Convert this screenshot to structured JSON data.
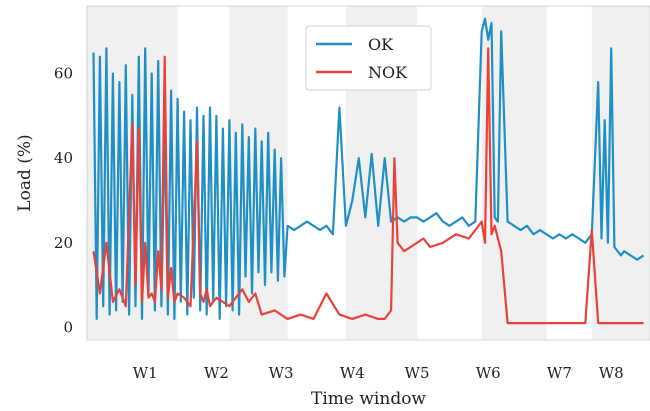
{
  "chart_data": {
    "type": "line",
    "title": "",
    "xlabel": "Time window",
    "ylabel": "Load (%)",
    "ylim": [
      -3,
      76
    ],
    "yticks": [
      0,
      20,
      40,
      60
    ],
    "xtick_labels": [
      "W1",
      "W2",
      "W3",
      "W4",
      "W5",
      "W6",
      "W7",
      "W8"
    ],
    "xtick_positions": [
      1.2,
      2.3,
      3.3,
      4.4,
      5.4,
      6.5,
      7.6,
      8.4
    ],
    "xlim": [
      0.3,
      9.0
    ],
    "shaded_bands": [
      [
        0.3,
        1.7
      ],
      [
        2.5,
        3.4
      ],
      [
        4.3,
        5.4
      ],
      [
        6.4,
        7.4
      ],
      [
        8.1,
        9.0
      ]
    ],
    "grid": false,
    "legend_position": "top-center",
    "series": [
      {
        "name": "OK",
        "color": "#1f8fc4",
        "x": [
          0.4,
          0.45,
          0.5,
          0.55,
          0.6,
          0.65,
          0.7,
          0.75,
          0.8,
          0.85,
          0.9,
          0.95,
          1.0,
          1.05,
          1.1,
          1.15,
          1.2,
          1.25,
          1.3,
          1.35,
          1.4,
          1.45,
          1.5,
          1.55,
          1.6,
          1.65,
          1.7,
          1.75,
          1.8,
          1.85,
          1.9,
          1.95,
          2.0,
          2.05,
          2.1,
          2.15,
          2.2,
          2.25,
          2.3,
          2.35,
          2.4,
          2.45,
          2.5,
          2.55,
          2.6,
          2.65,
          2.7,
          2.75,
          2.8,
          2.85,
          2.9,
          2.95,
          3.0,
          3.05,
          3.1,
          3.15,
          3.2,
          3.25,
          3.3,
          3.35,
          3.4,
          3.5,
          3.6,
          3.7,
          3.8,
          3.9,
          4.0,
          4.1,
          4.2,
          4.3,
          4.4,
          4.5,
          4.6,
          4.7,
          4.8,
          4.9,
          5.0,
          5.1,
          5.2,
          5.3,
          5.4,
          5.5,
          5.6,
          5.7,
          5.8,
          5.9,
          6.0,
          6.1,
          6.2,
          6.3,
          6.4,
          6.45,
          6.5,
          6.55,
          6.6,
          6.65,
          6.7,
          6.8,
          6.9,
          7.0,
          7.1,
          7.2,
          7.3,
          7.4,
          7.5,
          7.6,
          7.7,
          7.8,
          7.9,
          8.0,
          8.1,
          8.2,
          8.25,
          8.3,
          8.35,
          8.4,
          8.45,
          8.5,
          8.55,
          8.6,
          8.7,
          8.8,
          8.9
        ],
        "values": [
          65,
          2,
          64,
          5,
          66,
          3,
          60,
          4,
          58,
          6,
          62,
          3,
          55,
          5,
          64,
          2,
          66,
          8,
          60,
          4,
          63,
          5,
          48,
          3,
          56,
          2,
          54,
          6,
          51,
          3,
          49,
          7,
          52,
          4,
          50,
          3,
          52,
          6,
          50,
          2,
          47,
          5,
          49,
          4,
          46,
          3,
          48,
          12,
          45,
          8,
          47,
          13,
          44,
          10,
          46,
          13,
          42,
          11,
          40,
          12,
          24,
          23,
          24,
          25,
          24,
          23,
          24,
          22,
          52,
          24,
          30,
          40,
          26,
          41,
          24,
          40,
          25,
          26,
          25,
          26,
          26,
          25,
          26,
          27,
          25,
          24,
          25,
          26,
          24,
          25,
          70,
          73,
          68,
          72,
          26,
          25,
          70,
          25,
          24,
          23,
          24,
          22,
          23,
          22,
          21,
          22,
          21,
          22,
          21,
          20,
          22,
          58,
          21,
          49,
          20,
          66,
          19,
          18,
          17,
          18,
          17,
          16,
          17
        ]
      },
      {
        "name": "NOK",
        "color": "#e8423a",
        "x": [
          0.4,
          0.5,
          0.6,
          0.7,
          0.8,
          0.9,
          1.0,
          1.05,
          1.1,
          1.15,
          1.2,
          1.25,
          1.3,
          1.35,
          1.4,
          1.45,
          1.5,
          1.55,
          1.6,
          1.65,
          1.7,
          1.8,
          1.9,
          2.0,
          2.05,
          2.1,
          2.15,
          2.2,
          2.3,
          2.4,
          2.5,
          2.6,
          2.7,
          2.8,
          2.9,
          3.0,
          3.2,
          3.4,
          3.6,
          3.8,
          4.0,
          4.2,
          4.4,
          4.6,
          4.8,
          4.9,
          5.0,
          5.05,
          5.1,
          5.2,
          5.3,
          5.4,
          5.5,
          5.6,
          5.8,
          6.0,
          6.2,
          6.3,
          6.4,
          6.45,
          6.5,
          6.55,
          6.6,
          6.7,
          6.8,
          6.9,
          7.0,
          7.2,
          7.4,
          7.6,
          7.8,
          8.0,
          8.1,
          8.2,
          8.3,
          8.4,
          8.5,
          8.6,
          8.7,
          8.8,
          8.9
        ],
        "values": [
          18,
          8,
          20,
          6,
          9,
          5,
          48,
          10,
          47,
          6,
          20,
          7,
          8,
          6,
          18,
          9,
          64,
          7,
          14,
          6,
          8,
          7,
          5,
          44,
          8,
          6,
          9,
          5,
          7,
          6,
          5,
          7,
          9,
          6,
          8,
          3,
          4,
          2,
          3,
          2,
          8,
          3,
          2,
          3,
          2,
          2,
          4,
          40,
          20,
          18,
          19,
          20,
          21,
          19,
          20,
          22,
          21,
          23,
          25,
          20,
          66,
          22,
          24,
          18,
          1,
          1,
          1,
          1,
          1,
          1,
          1,
          1,
          23,
          1,
          1,
          1,
          1,
          1,
          1,
          1,
          1
        ]
      }
    ]
  }
}
